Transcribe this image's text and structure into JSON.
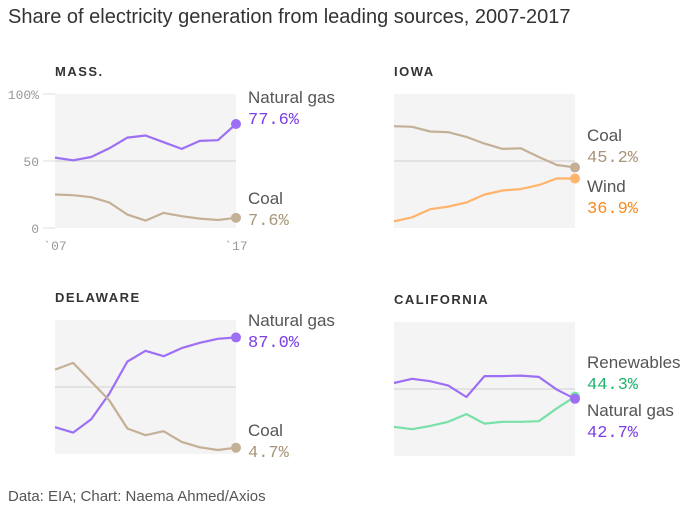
{
  "title": "Share of electricity generation from leading sources, 2007-2017",
  "source": "Data: EIA; Chart: Naema Ahmed/Axios",
  "chart_data": [
    {
      "type": "line",
      "title": "MASS.",
      "x": [
        2007,
        2008,
        2009,
        2010,
        2011,
        2012,
        2013,
        2014,
        2015,
        2016,
        2017
      ],
      "ylim": [
        0,
        100
      ],
      "yticks": [
        "100%",
        "50",
        "0"
      ],
      "xticks": [
        "`07",
        "`17"
      ],
      "series": [
        {
          "name": "Natural gas",
          "label": "77.6%",
          "color": "#9d6ff5",
          "text_color": "#7b3fe4",
          "values": [
            52.5,
            50.5,
            53,
            59.5,
            67.5,
            69,
            64,
            59,
            65,
            65.5,
            77.6
          ]
        },
        {
          "name": "Coal",
          "label": "7.6%",
          "color": "#c4b096",
          "text_color": "#a8967a",
          "values": [
            25,
            24.5,
            23,
            19,
            10,
            5.5,
            11.3,
            8.8,
            7,
            6,
            7.6
          ]
        }
      ]
    },
    {
      "type": "line",
      "title": "IOWA",
      "x": [
        2007,
        2008,
        2009,
        2010,
        2011,
        2012,
        2013,
        2014,
        2015,
        2016,
        2017
      ],
      "ylim": [
        0,
        100
      ],
      "series": [
        {
          "name": "Coal",
          "label": "45.2%",
          "color": "#c4b096",
          "text_color": "#a8967a",
          "values": [
            76,
            75.5,
            72,
            71.5,
            68,
            63,
            59,
            59.5,
            53,
            47,
            45.2
          ]
        },
        {
          "name": "Wind",
          "label": "36.9%",
          "color": "#ffb36b",
          "text_color": "#f58a1f",
          "values": [
            5,
            8,
            14,
            16,
            19,
            25,
            28,
            29,
            32,
            37,
            36.9
          ]
        }
      ]
    },
    {
      "type": "line",
      "title": "DELAWARE",
      "x": [
        2007,
        2008,
        2009,
        2010,
        2011,
        2012,
        2013,
        2014,
        2015,
        2016,
        2017
      ],
      "ylim": [
        0,
        100
      ],
      "series": [
        {
          "name": "Natural gas",
          "label": "87.0%",
          "color": "#9d6ff5",
          "text_color": "#7b3fe4",
          "values": [
            20,
            16,
            26,
            45,
            69,
            77,
            73,
            79,
            83,
            86,
            87
          ]
        },
        {
          "name": "Coal",
          "label": "4.7%",
          "color": "#c4b096",
          "text_color": "#a8967a",
          "values": [
            63,
            68,
            54,
            40,
            19,
            14,
            17,
            9,
            5,
            3,
            4.7
          ]
        }
      ]
    },
    {
      "type": "line",
      "title": "CALIFORNIA",
      "x": [
        2007,
        2008,
        2009,
        2010,
        2011,
        2012,
        2013,
        2014,
        2015,
        2016,
        2017
      ],
      "ylim": [
        0,
        100
      ],
      "series": [
        {
          "name": "Renewables",
          "label": "44.3%",
          "color": "#79e0a8",
          "text_color": "#1fb36c",
          "values": [
            21.7,
            20,
            22.5,
            25.5,
            31.3,
            24.2,
            25.5,
            25.5,
            26,
            35.6,
            44.3
          ]
        },
        {
          "name": "Natural gas",
          "label": "42.7%",
          "color": "#9d6ff5",
          "text_color": "#7b3fe4",
          "values": [
            54.5,
            57.6,
            55.8,
            52.5,
            44,
            59.6,
            59.6,
            60,
            59,
            49.5,
            42.7
          ]
        }
      ]
    }
  ]
}
